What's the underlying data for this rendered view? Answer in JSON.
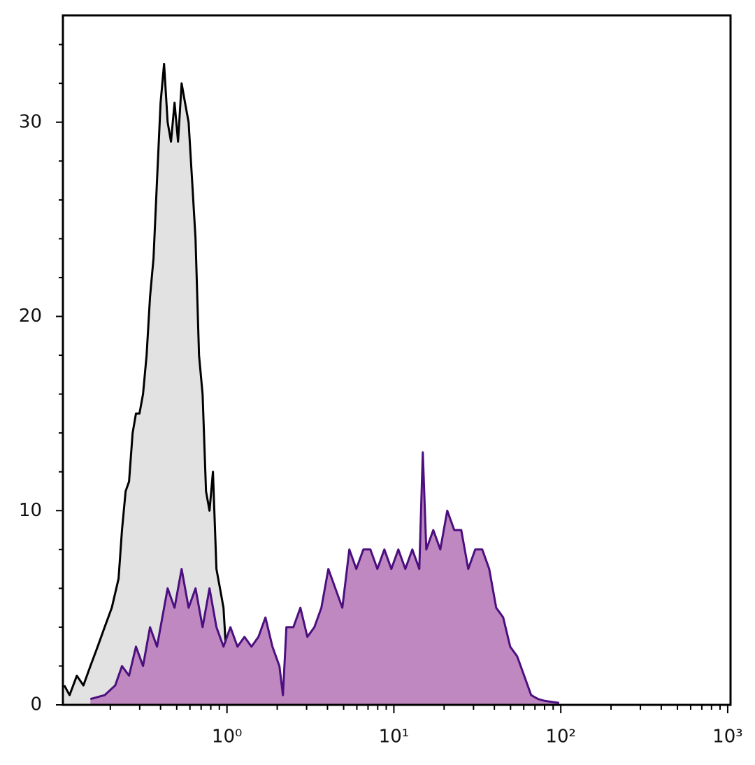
{
  "chart_data": {
    "type": "histogram-overlay",
    "xscale": "log",
    "xlim": [
      0.104,
      1040
    ],
    "ylim": [
      0,
      35.5
    ],
    "xticks": [
      {
        "value": 1,
        "label": "10⁰"
      },
      {
        "value": 10,
        "label": "10¹"
      },
      {
        "value": 100,
        "label": "10²"
      },
      {
        "value": 1000,
        "label": "10³"
      }
    ],
    "xminor_ticks": [
      0.2,
      0.3,
      0.4,
      0.5,
      0.6,
      0.7,
      0.8,
      0.9,
      2,
      3,
      4,
      5,
      6,
      7,
      8,
      9,
      20,
      30,
      40,
      50,
      60,
      70,
      80,
      90,
      200,
      300,
      400,
      500,
      600,
      700,
      800,
      900
    ],
    "yticks": [
      0,
      10,
      20,
      30
    ],
    "yminor_ticks": [
      2,
      4,
      6,
      8,
      12,
      14,
      16,
      18,
      22,
      24,
      26,
      28,
      32,
      34
    ],
    "series": [
      {
        "color": "#000000",
        "fill": "#e2e2e2",
        "x": [
          0.106,
          0.114,
          0.126,
          0.138,
          0.152,
          0.168,
          0.185,
          0.204,
          0.224,
          0.235,
          0.247,
          0.259,
          0.272,
          0.285,
          0.299,
          0.314,
          0.33,
          0.346,
          0.363,
          0.381,
          0.4,
          0.42,
          0.441,
          0.462,
          0.485,
          0.509,
          0.535,
          0.561,
          0.589,
          0.618,
          0.648,
          0.68,
          0.714,
          0.749,
          0.786,
          0.824,
          0.865,
          0.908,
          0.953,
          1.0,
          1.049,
          1.101,
          1.156
        ],
        "values": [
          1,
          0.5,
          1.5,
          1,
          2,
          3,
          4,
          5,
          6.5,
          9,
          11,
          11.5,
          14,
          15,
          15,
          16,
          18,
          21,
          23,
          27,
          31,
          33,
          30,
          29,
          31,
          29,
          32,
          31,
          30,
          27,
          24,
          18,
          16,
          11,
          10,
          12,
          7,
          6,
          5,
          2,
          1,
          0.5,
          0.3
        ]
      },
      {
        "color": "#4b0f7f",
        "fill": "#c088c0",
        "x": [
          0.152,
          0.185,
          0.214,
          0.235,
          0.259,
          0.285,
          0.314,
          0.346,
          0.381,
          0.42,
          0.441,
          0.485,
          0.535,
          0.589,
          0.648,
          0.714,
          0.786,
          0.865,
          0.953,
          1.049,
          1.156,
          1.273,
          1.402,
          1.544,
          1.7,
          1.872,
          2.062,
          2.163,
          2.27,
          2.5,
          2.753,
          3.032,
          3.339,
          3.678,
          4.05,
          4.461,
          4.912,
          5.41,
          5.958,
          6.562,
          7.227,
          7.959,
          8.765,
          9.653,
          10.63,
          11.71,
          12.9,
          14.2,
          14.9,
          15.64,
          17.22,
          18.97,
          20.89,
          23.0,
          25.33,
          27.9,
          30.72,
          33.83,
          37.26,
          41.03,
          45.19,
          49.77,
          54.81,
          60.36,
          66.47,
          73.2,
          80.62,
          97.7
        ],
        "values": [
          0.3,
          0.5,
          1,
          2,
          1.5,
          3,
          2,
          4,
          3,
          5,
          6,
          5,
          7,
          5,
          6,
          4,
          6,
          4,
          3,
          4,
          3,
          3.5,
          3,
          3.5,
          4.5,
          3,
          2,
          0.5,
          4,
          4,
          5,
          3.5,
          4,
          5,
          7,
          6,
          5,
          8,
          7,
          8,
          8,
          7,
          8,
          7,
          8,
          7,
          8,
          7,
          13,
          8,
          9,
          8,
          10,
          9,
          9,
          7,
          8,
          8,
          7,
          5,
          4.5,
          3,
          2.5,
          1.5,
          0.5,
          0.3,
          0.2,
          0.1
        ]
      }
    ]
  }
}
